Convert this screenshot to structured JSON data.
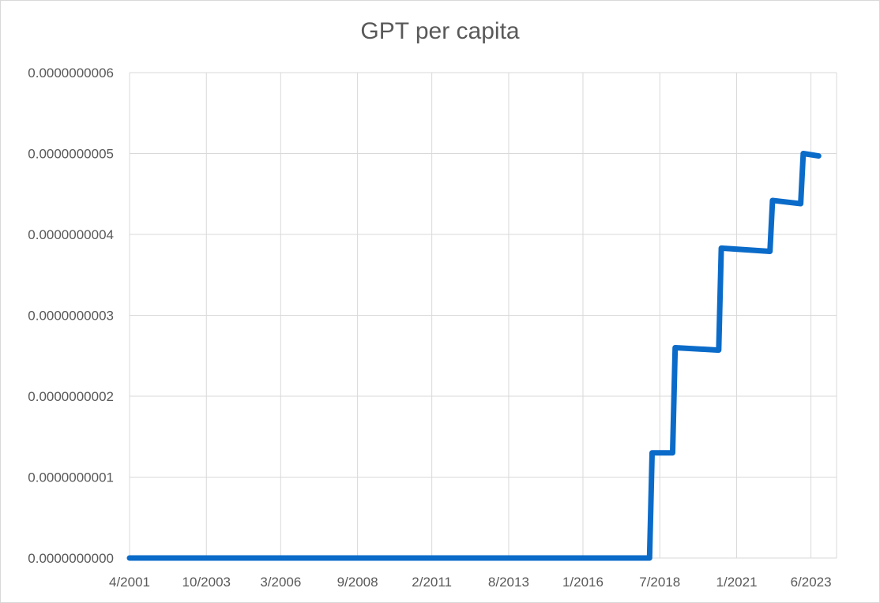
{
  "chart_data": {
    "type": "line",
    "title": "GPT per capita",
    "xlabel": "",
    "ylabel": "",
    "grid": true,
    "legend": "none",
    "line_color": "#0B6BC9",
    "x_ticks": [
      "4/2001",
      "10/2003",
      "3/2006",
      "9/2008",
      "2/2011",
      "8/2013",
      "1/2016",
      "7/2018",
      "1/2021",
      "6/2023"
    ],
    "y_ticks": [
      "0.0000000000",
      "0.0000000001",
      "0.0000000002",
      "0.0000000003",
      "0.0000000004",
      "0.0000000005",
      "0.0000000006"
    ],
    "ylim": [
      0,
      6e-10
    ],
    "xlim": [
      "2001-04",
      "2024-04"
    ],
    "series": [
      {
        "values": [
          {
            "x": "2001-04",
            "y": 0
          },
          {
            "x": "2018-03",
            "y": 0
          },
          {
            "x": "2018-04",
            "y": 1.3e-10
          },
          {
            "x": "2018-12",
            "y": 1.3e-10
          },
          {
            "x": "2019-01",
            "y": 2.6e-10
          },
          {
            "x": "2020-06",
            "y": 2.57e-10
          },
          {
            "x": "2020-07",
            "y": 3.83e-10
          },
          {
            "x": "2022-02",
            "y": 3.79e-10
          },
          {
            "x": "2022-03",
            "y": 4.42e-10
          },
          {
            "x": "2023-02",
            "y": 4.38e-10
          },
          {
            "x": "2023-03",
            "y": 5e-10
          },
          {
            "x": "2023-09",
            "y": 4.97e-10
          }
        ]
      }
    ]
  }
}
